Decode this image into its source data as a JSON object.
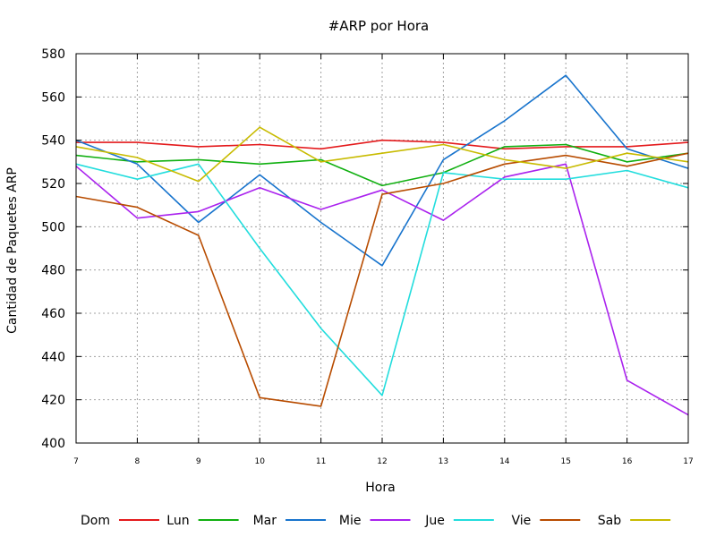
{
  "chart_data": {
    "type": "line",
    "title": "#ARP por Hora",
    "xlabel": "Hora",
    "ylabel": "Cantidad de Paquetes ARP",
    "x": [
      7,
      8,
      9,
      10,
      11,
      12,
      13,
      14,
      15,
      16,
      17
    ],
    "xlim": [
      7,
      17
    ],
    "ylim": [
      400,
      580
    ],
    "yticks": [
      400,
      420,
      440,
      460,
      480,
      500,
      520,
      540,
      560,
      580
    ],
    "grid": true,
    "legend_position": "bottom",
    "series": [
      {
        "name": "Dom",
        "color": "#e41a1c",
        "values": [
          539,
          539,
          537,
          538,
          536,
          540,
          539,
          536,
          537,
          537,
          539
        ]
      },
      {
        "name": "Lun",
        "color": "#11b011",
        "values": [
          533,
          530,
          531,
          529,
          531,
          519,
          525,
          537,
          538,
          530,
          534
        ]
      },
      {
        "name": "Mar",
        "color": "#1874cd",
        "values": [
          540,
          529,
          502,
          524,
          502,
          482,
          531,
          549,
          570,
          536,
          527
        ]
      },
      {
        "name": "Mie",
        "color": "#aa22ee",
        "values": [
          528,
          504,
          507,
          518,
          508,
          517,
          503,
          523,
          529,
          429,
          413
        ]
      },
      {
        "name": "Jue",
        "color": "#22dddd",
        "values": [
          529,
          522,
          529,
          490,
          453,
          422,
          525,
          522,
          522,
          526,
          518
        ]
      },
      {
        "name": "Vie",
        "color": "#b84c00",
        "values": [
          514,
          509,
          496,
          421,
          417,
          515,
          520,
          529,
          533,
          528,
          534
        ]
      },
      {
        "name": "Sab",
        "color": "#c8bb00",
        "values": [
          537,
          532,
          521,
          546,
          530,
          534,
          538,
          531,
          527,
          534,
          530
        ]
      }
    ]
  }
}
